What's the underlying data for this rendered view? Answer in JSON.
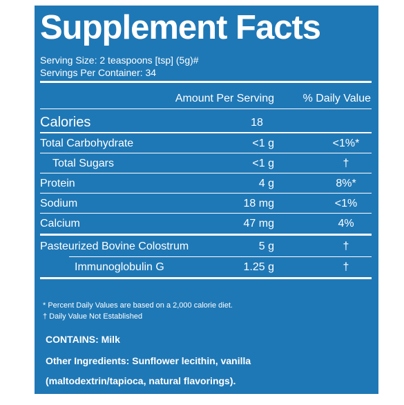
{
  "header": {
    "title": "Supplement Facts",
    "serving_size": "Serving Size: 2 teaspoons [tsp] (5g)#",
    "servings_per_container": "Servings Per Container: 34"
  },
  "columns": {
    "amount": "Amount Per Serving",
    "daily_value": "% Daily Value"
  },
  "calories": {
    "name": "Calories",
    "amount": "18"
  },
  "nutrients": [
    {
      "name": "Total Carbohydrate",
      "amount": "<1 g",
      "daily_value": "<1%*"
    },
    {
      "name": "Total Sugars",
      "amount": "<1 g",
      "daily_value": "†"
    },
    {
      "name": "Protein",
      "amount": "4 g",
      "daily_value": "8%*"
    },
    {
      "name": "Sodium",
      "amount": "18 mg",
      "daily_value": "<1%"
    },
    {
      "name": "Calcium",
      "amount": "47 mg",
      "daily_value": "4%"
    }
  ],
  "ingredients": [
    {
      "name": "Pasteurized Bovine Colostrum",
      "amount": "5 g",
      "daily_value": "†"
    },
    {
      "name": "Immunoglobulin G",
      "amount": "1.25 g",
      "daily_value": "†"
    }
  ],
  "footnotes": [
    "* Percent Daily Values are based on a 2,000 calorie diet.",
    "† Daily Value Not Established"
  ],
  "contains": "CONTAINS: Milk",
  "other_ingredients": [
    "Other Ingredients: Sunflower lecithin, vanilla",
    "(maltodextrin/tapioca, natural flavorings)."
  ]
}
